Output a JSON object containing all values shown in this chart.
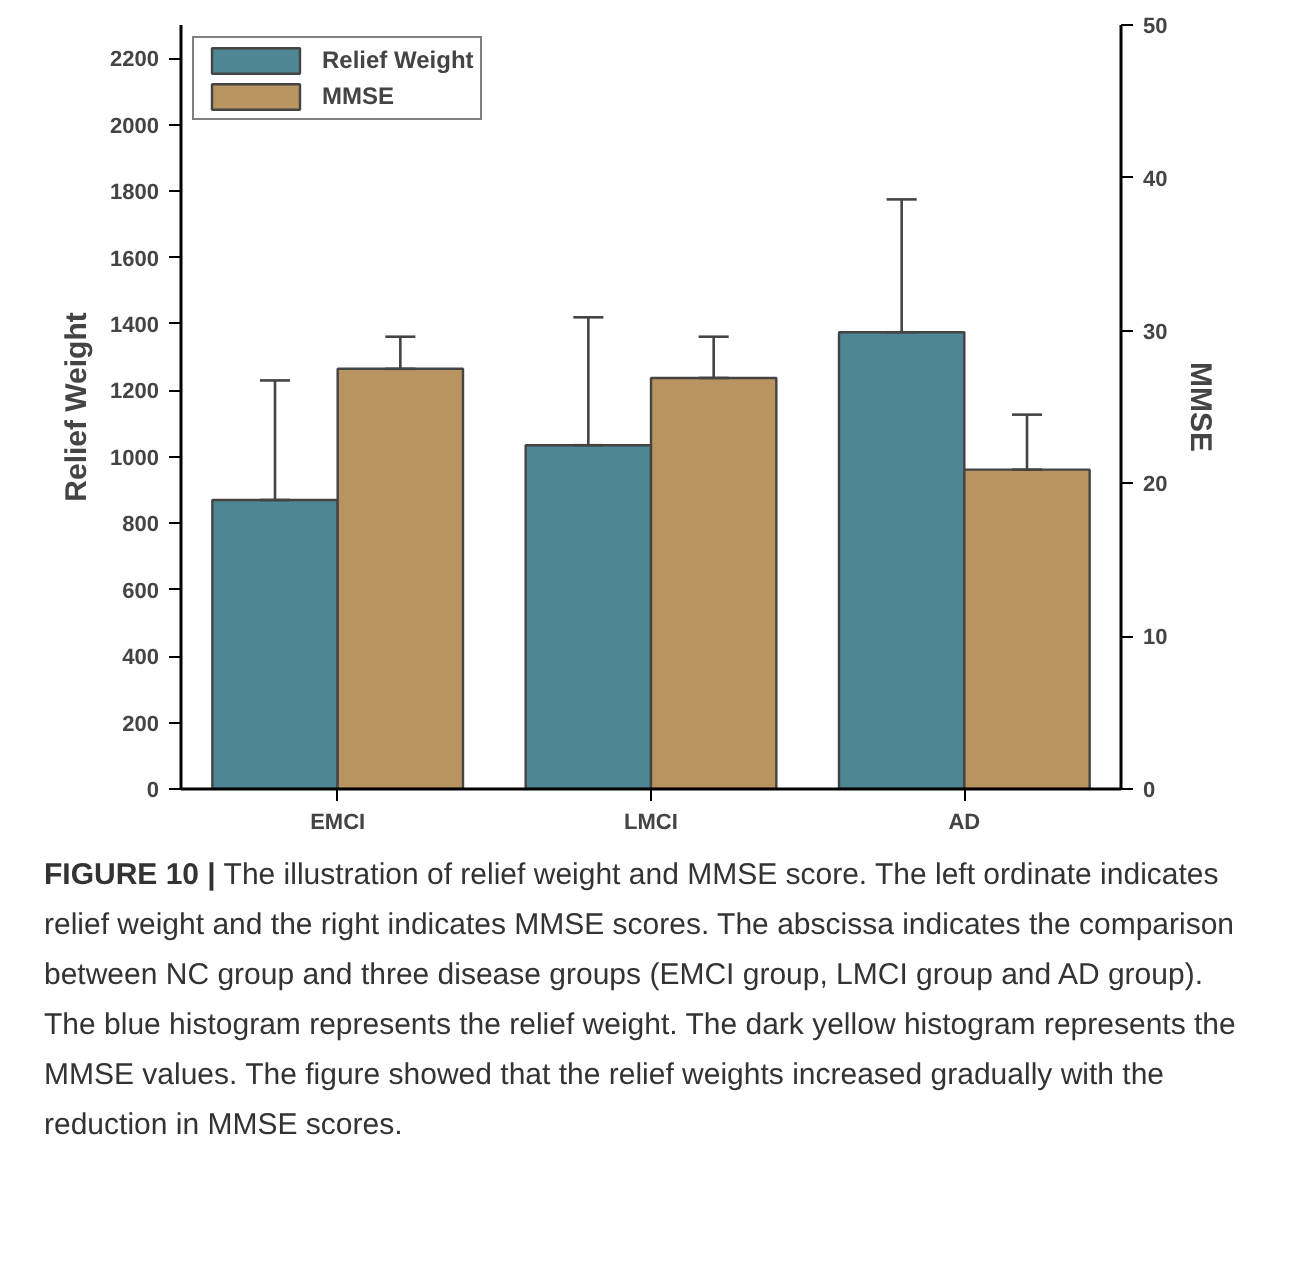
{
  "chart_data": {
    "type": "bar",
    "categories": [
      "EMCI",
      "LMCI",
      "AD"
    ],
    "series": [
      {
        "name": "Relief Weight",
        "color": "#4f8693",
        "values": [
          870,
          1035,
          1375
        ],
        "errors": [
          [
            870,
            1230
          ],
          [
            1035,
            1420
          ],
          [
            1375,
            1775
          ]
        ]
      },
      {
        "name": "MMSE",
        "color": "#b89560",
        "values": [
          27.5,
          26.9,
          20.9
        ],
        "errors": [
          [
            27.5,
            29.6
          ],
          [
            26.9,
            29.6
          ],
          [
            20.9,
            24.5
          ]
        ],
        "axis": "y2"
      }
    ],
    "ylabel": "Relief Weight",
    "y2label": "MMSE",
    "ylim": [
      0,
      2300
    ],
    "yticks": [
      0,
      200,
      400,
      600,
      800,
      1000,
      1200,
      1400,
      1600,
      1800,
      2000,
      2200
    ],
    "y2lim": [
      0,
      50
    ],
    "y2ticks": [
      0,
      10,
      20,
      30,
      40,
      50
    ],
    "grid": false,
    "legend": "top left",
    "annotations": [
      "FIGURE 10 | The illustration of relief weight and MMSE score. The left ordinate indicates relief weight and the right indicates MMSE scores. The abscissa indicates the comparison between NC group and three disease groups (EMCI group, LMCI group and AD group). The blue histogram represents the relief weight. The dark yellow histogram represents the MMSE values. The figure showed that the relief weights increased gradually with the reduction in MMSE scores."
    ]
  }
}
